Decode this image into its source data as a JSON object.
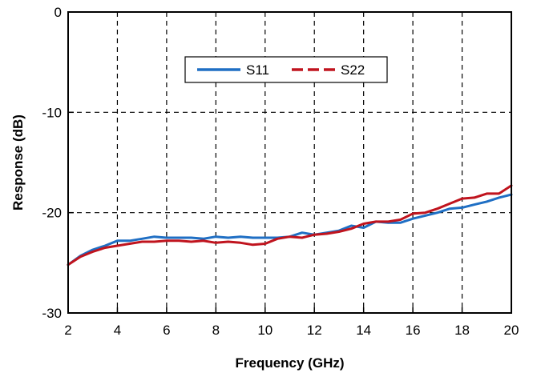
{
  "chart_data": {
    "type": "line",
    "xlabel": "Frequency (GHz)",
    "ylabel": "Response (dB)",
    "xlim": [
      2,
      20
    ],
    "ylim": [
      -30,
      0
    ],
    "xticks": [
      2,
      4,
      6,
      8,
      10,
      12,
      14,
      16,
      18,
      20
    ],
    "yticks": [
      -30,
      -20,
      -10,
      0
    ],
    "grid": true,
    "legend": "top-center",
    "series": [
      {
        "name": "S11",
        "color": "#1f6fc4",
        "dash": "solid",
        "x": [
          2,
          2.5,
          3,
          3.5,
          4,
          4.5,
          5,
          5.5,
          6,
          6.5,
          7,
          7.5,
          8,
          8.5,
          9,
          9.5,
          10,
          10.5,
          11,
          11.5,
          12,
          12.5,
          13,
          13.5,
          14,
          14.5,
          15,
          15.5,
          16,
          16.5,
          17,
          17.5,
          18,
          18.5,
          19,
          19.5,
          20
        ],
        "y": [
          -25.2,
          -24.3,
          -23.7,
          -23.3,
          -22.8,
          -22.8,
          -22.6,
          -22.4,
          -22.5,
          -22.5,
          -22.5,
          -22.6,
          -22.4,
          -22.5,
          -22.4,
          -22.5,
          -22.5,
          -22.5,
          -22.4,
          -22.0,
          -22.2,
          -22.0,
          -21.8,
          -21.3,
          -21.5,
          -20.9,
          -21.0,
          -21.0,
          -20.6,
          -20.3,
          -20.0,
          -19.6,
          -19.5,
          -19.2,
          -18.9,
          -18.5,
          -18.2
        ]
      },
      {
        "name": "S22",
        "color": "#c0141e",
        "dash": "dashed",
        "x": [
          2,
          2.5,
          3,
          3.5,
          4,
          4.5,
          5,
          5.5,
          6,
          6.5,
          7,
          7.5,
          8,
          8.5,
          9,
          9.5,
          10,
          10.5,
          11,
          11.5,
          12,
          12.5,
          13,
          13.5,
          14,
          14.5,
          15,
          15.5,
          16,
          16.5,
          17,
          17.5,
          18,
          18.5,
          19,
          19.5,
          20
        ],
        "y": [
          -25.2,
          -24.4,
          -23.9,
          -23.5,
          -23.3,
          -23.1,
          -22.9,
          -22.9,
          -22.8,
          -22.8,
          -22.9,
          -22.8,
          -23.0,
          -22.9,
          -23.0,
          -23.2,
          -23.1,
          -22.6,
          -22.4,
          -22.5,
          -22.2,
          -22.1,
          -21.9,
          -21.6,
          -21.1,
          -20.9,
          -20.9,
          -20.7,
          -20.1,
          -20.0,
          -19.6,
          -19.1,
          -18.6,
          -18.5,
          -18.1,
          -18.1,
          -17.3
        ]
      }
    ]
  }
}
